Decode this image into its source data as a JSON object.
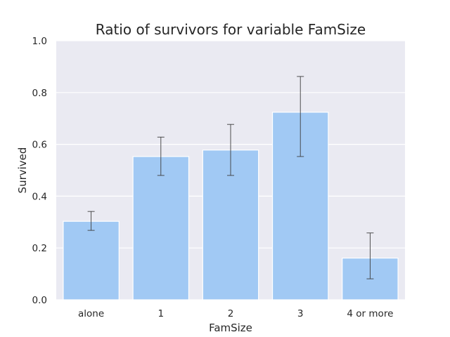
{
  "chart_data": {
    "type": "bar",
    "title": "Ratio of survivors for variable FamSize",
    "xlabel": "FamSize",
    "ylabel": "Survived",
    "categories": [
      "alone",
      "1",
      "2",
      "3",
      "4 or more"
    ],
    "values": [
      0.303,
      0.553,
      0.578,
      0.724,
      0.161
    ],
    "error_bars": [
      {
        "low": 0.268,
        "high": 0.341
      },
      {
        "low": 0.48,
        "high": 0.628
      },
      {
        "low": 0.48,
        "high": 0.677
      },
      {
        "low": 0.553,
        "high": 0.862
      },
      {
        "low": 0.081,
        "high": 0.258
      }
    ],
    "ylim": [
      0.0,
      1.0
    ],
    "yticks": [
      "0.0",
      "0.2",
      "0.4",
      "0.6",
      "0.8",
      "1.0"
    ],
    "grid": true,
    "colors": {
      "bar": "#a1c9f4",
      "background": "#eaeaf2",
      "grid": "#ffffff",
      "error_bar": "#3d3d3d"
    }
  }
}
